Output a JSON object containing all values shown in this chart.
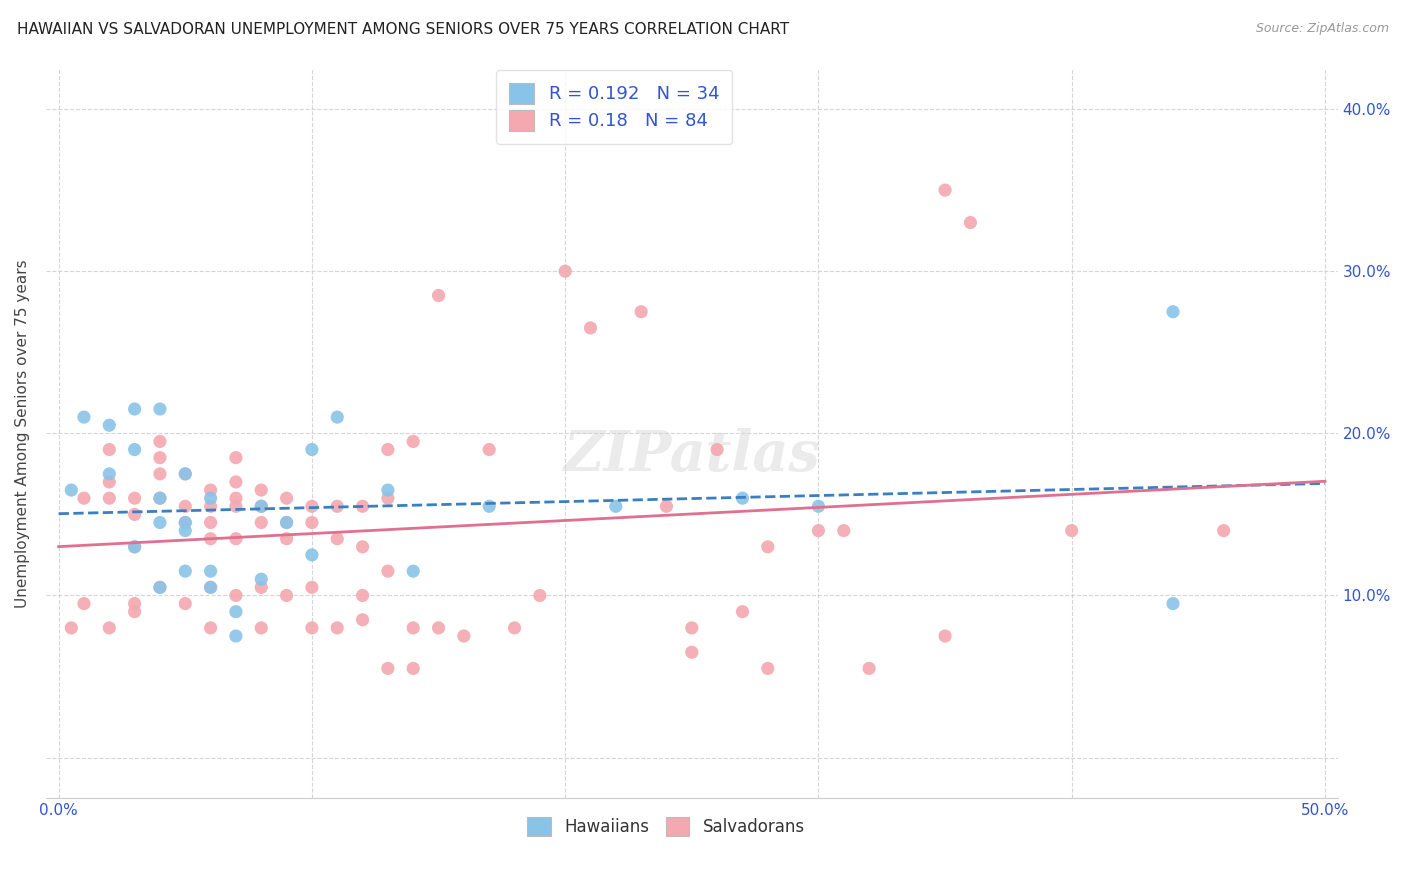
{
  "title": "HAWAIIAN VS SALVADORAN UNEMPLOYMENT AMONG SENIORS OVER 75 YEARS CORRELATION CHART",
  "source": "Source: ZipAtlas.com",
  "ylabel": "Unemployment Among Seniors over 75 years",
  "xlim": [
    0.0,
    0.5
  ],
  "ylim": [
    -0.02,
    0.42
  ],
  "xticks": [
    0.0,
    0.1,
    0.2,
    0.3,
    0.4,
    0.5
  ],
  "yticks": [
    0.0,
    0.1,
    0.2,
    0.3,
    0.4
  ],
  "right_yticklabels": [
    "",
    "10.0%",
    "20.0%",
    "30.0%",
    "40.0%"
  ],
  "bottom_xticklabels": [
    "0.0%",
    "",
    "",
    "",
    "",
    "50.0%"
  ],
  "hawaiian_color": "#89c4e8",
  "salvadoran_color": "#f4a8b0",
  "hawaiian_line_color": "#3a7fc1",
  "salvadoran_line_color": "#e07090",
  "R_hawaiian": 0.192,
  "N_hawaiian": 34,
  "R_salvadoran": 0.18,
  "N_salvadoran": 84,
  "legend_labels": [
    "Hawaiians",
    "Salvadorans"
  ],
  "watermark": "ZIPatlas",
  "haw_x": [
    0.005,
    0.01,
    0.02,
    0.02,
    0.03,
    0.03,
    0.03,
    0.04,
    0.04,
    0.04,
    0.04,
    0.05,
    0.05,
    0.05,
    0.05,
    0.06,
    0.06,
    0.06,
    0.07,
    0.07,
    0.08,
    0.08,
    0.09,
    0.1,
    0.1,
    0.11,
    0.13,
    0.14,
    0.17,
    0.22,
    0.27,
    0.3,
    0.44,
    0.44
  ],
  "haw_y": [
    0.165,
    0.21,
    0.205,
    0.175,
    0.215,
    0.13,
    0.19,
    0.16,
    0.215,
    0.105,
    0.145,
    0.115,
    0.145,
    0.14,
    0.175,
    0.105,
    0.16,
    0.115,
    0.09,
    0.075,
    0.11,
    0.155,
    0.145,
    0.125,
    0.19,
    0.21,
    0.165,
    0.115,
    0.155,
    0.155,
    0.16,
    0.155,
    0.275,
    0.095
  ],
  "sal_x": [
    0.005,
    0.01,
    0.01,
    0.02,
    0.02,
    0.02,
    0.02,
    0.03,
    0.03,
    0.03,
    0.03,
    0.03,
    0.04,
    0.04,
    0.04,
    0.04,
    0.04,
    0.05,
    0.05,
    0.05,
    0.05,
    0.06,
    0.06,
    0.06,
    0.06,
    0.06,
    0.06,
    0.07,
    0.07,
    0.07,
    0.07,
    0.07,
    0.07,
    0.08,
    0.08,
    0.08,
    0.08,
    0.08,
    0.09,
    0.09,
    0.09,
    0.09,
    0.1,
    0.1,
    0.1,
    0.1,
    0.11,
    0.11,
    0.11,
    0.12,
    0.12,
    0.12,
    0.12,
    0.13,
    0.13,
    0.13,
    0.13,
    0.14,
    0.14,
    0.14,
    0.15,
    0.15,
    0.16,
    0.17,
    0.18,
    0.19,
    0.2,
    0.21,
    0.23,
    0.24,
    0.25,
    0.25,
    0.26,
    0.27,
    0.28,
    0.28,
    0.3,
    0.31,
    0.32,
    0.35,
    0.35,
    0.36,
    0.4,
    0.46
  ],
  "sal_y": [
    0.08,
    0.16,
    0.095,
    0.19,
    0.17,
    0.16,
    0.08,
    0.16,
    0.15,
    0.13,
    0.095,
    0.09,
    0.195,
    0.185,
    0.175,
    0.16,
    0.105,
    0.155,
    0.145,
    0.175,
    0.095,
    0.165,
    0.155,
    0.145,
    0.135,
    0.105,
    0.08,
    0.185,
    0.17,
    0.16,
    0.155,
    0.135,
    0.1,
    0.165,
    0.155,
    0.145,
    0.105,
    0.08,
    0.16,
    0.145,
    0.135,
    0.1,
    0.155,
    0.145,
    0.105,
    0.08,
    0.155,
    0.135,
    0.08,
    0.155,
    0.13,
    0.1,
    0.085,
    0.19,
    0.16,
    0.115,
    0.055,
    0.195,
    0.08,
    0.055,
    0.285,
    0.08,
    0.075,
    0.19,
    0.08,
    0.1,
    0.3,
    0.265,
    0.275,
    0.155,
    0.08,
    0.065,
    0.19,
    0.09,
    0.13,
    0.055,
    0.14,
    0.14,
    0.055,
    0.35,
    0.075,
    0.33,
    0.14,
    0.14
  ]
}
